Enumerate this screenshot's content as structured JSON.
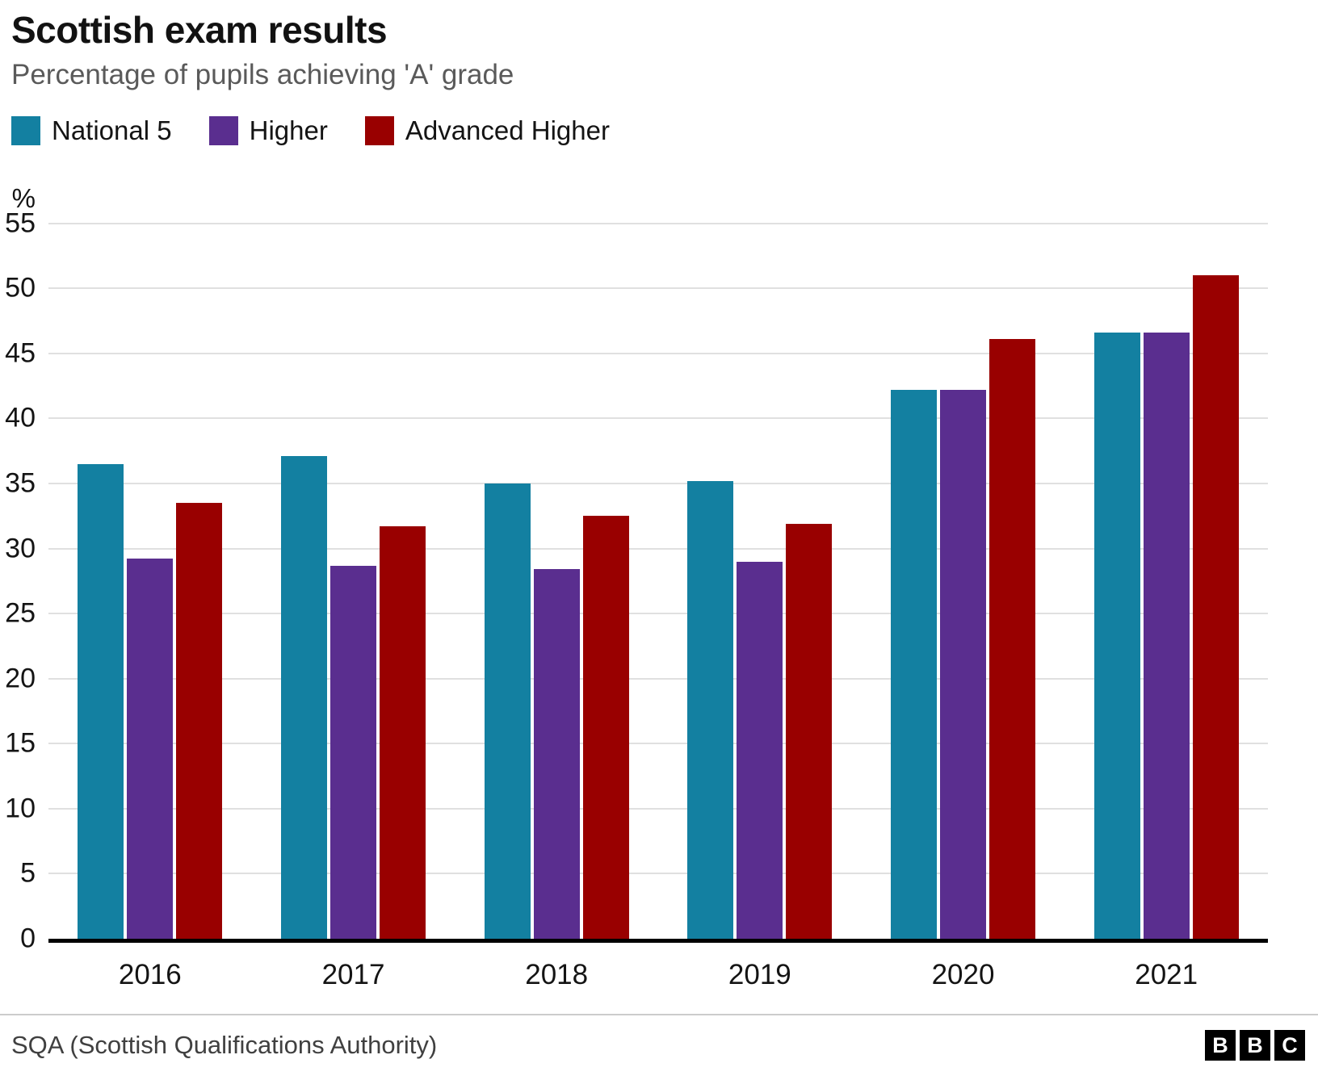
{
  "header": {
    "title": "Scottish exam results",
    "subtitle": "Percentage of pupils achieving 'A' grade"
  },
  "axis": {
    "unit_label": "%",
    "y_ticks": [
      55,
      50,
      45,
      40,
      35,
      30,
      25,
      20,
      15,
      10,
      5,
      0
    ]
  },
  "chart_data": {
    "type": "bar",
    "title": "Scottish exam results",
    "subtitle": "Percentage of pupils achieving 'A' grade",
    "categories": [
      "2016",
      "2017",
      "2018",
      "2019",
      "2020",
      "2021"
    ],
    "series": [
      {
        "name": "National 5",
        "color": "#1380A1",
        "values": [
          36.5,
          37.1,
          35.0,
          35.2,
          42.2,
          46.6
        ]
      },
      {
        "name": "Higher",
        "color": "#5A2E8F",
        "values": [
          29.2,
          28.7,
          28.4,
          29.0,
          42.2,
          46.6
        ]
      },
      {
        "name": "Advanced Higher",
        "color": "#990000",
        "values": [
          33.5,
          31.7,
          32.5,
          31.9,
          46.1,
          51.0
        ]
      }
    ],
    "xlabel": "",
    "ylabel": "%",
    "ylim": [
      0,
      55
    ],
    "grid": true,
    "legend_position": "top-left"
  },
  "footer": {
    "source": "SQA (Scottish Qualifications Authority)",
    "logo_letters": [
      "B",
      "B",
      "C"
    ]
  }
}
